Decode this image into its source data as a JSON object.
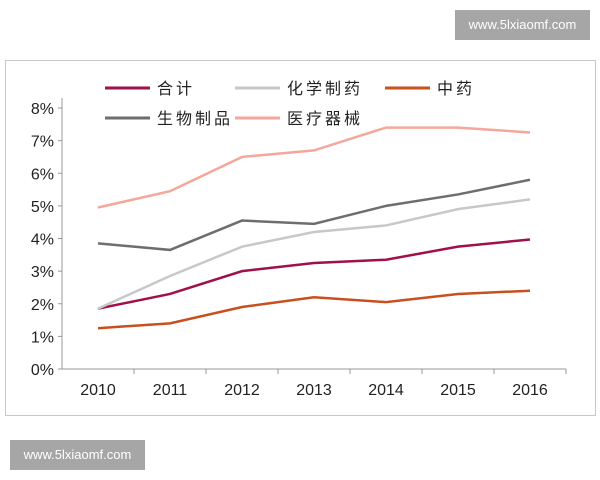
{
  "watermark_top": "www.5lxiaomf.com",
  "watermark_bottom": "www.5lxiaomf.com",
  "chart_data": {
    "type": "line",
    "title": "",
    "xlabel": "",
    "ylabel": "",
    "x": [
      "2010",
      "2011",
      "2012",
      "2013",
      "2014",
      "2015",
      "2016"
    ],
    "yticks": [
      "0%",
      "1%",
      "2%",
      "3%",
      "4%",
      "5%",
      "6%",
      "7%",
      "8%"
    ],
    "ylim": [
      0,
      8
    ],
    "legend_position": "top",
    "series": [
      {
        "name": "合计",
        "color": "#a0104a",
        "values": [
          1.85,
          2.3,
          3.0,
          3.25,
          3.35,
          3.75,
          3.97
        ]
      },
      {
        "name": "化学制药",
        "color": "#c8c8c8",
        "values": [
          1.85,
          2.85,
          3.75,
          4.2,
          4.4,
          4.9,
          5.2
        ]
      },
      {
        "name": "中药",
        "color": "#c8501e",
        "values": [
          1.25,
          1.4,
          1.9,
          2.2,
          2.05,
          2.3,
          2.4
        ]
      },
      {
        "name": "生物制品",
        "color": "#6e6e6e",
        "values": [
          3.85,
          3.65,
          4.55,
          4.45,
          5.0,
          5.35,
          5.8
        ]
      },
      {
        "name": "医疗器械",
        "color": "#f4a79a",
        "values": [
          4.95,
          5.45,
          6.5,
          6.7,
          7.4,
          7.4,
          7.25
        ]
      }
    ]
  }
}
